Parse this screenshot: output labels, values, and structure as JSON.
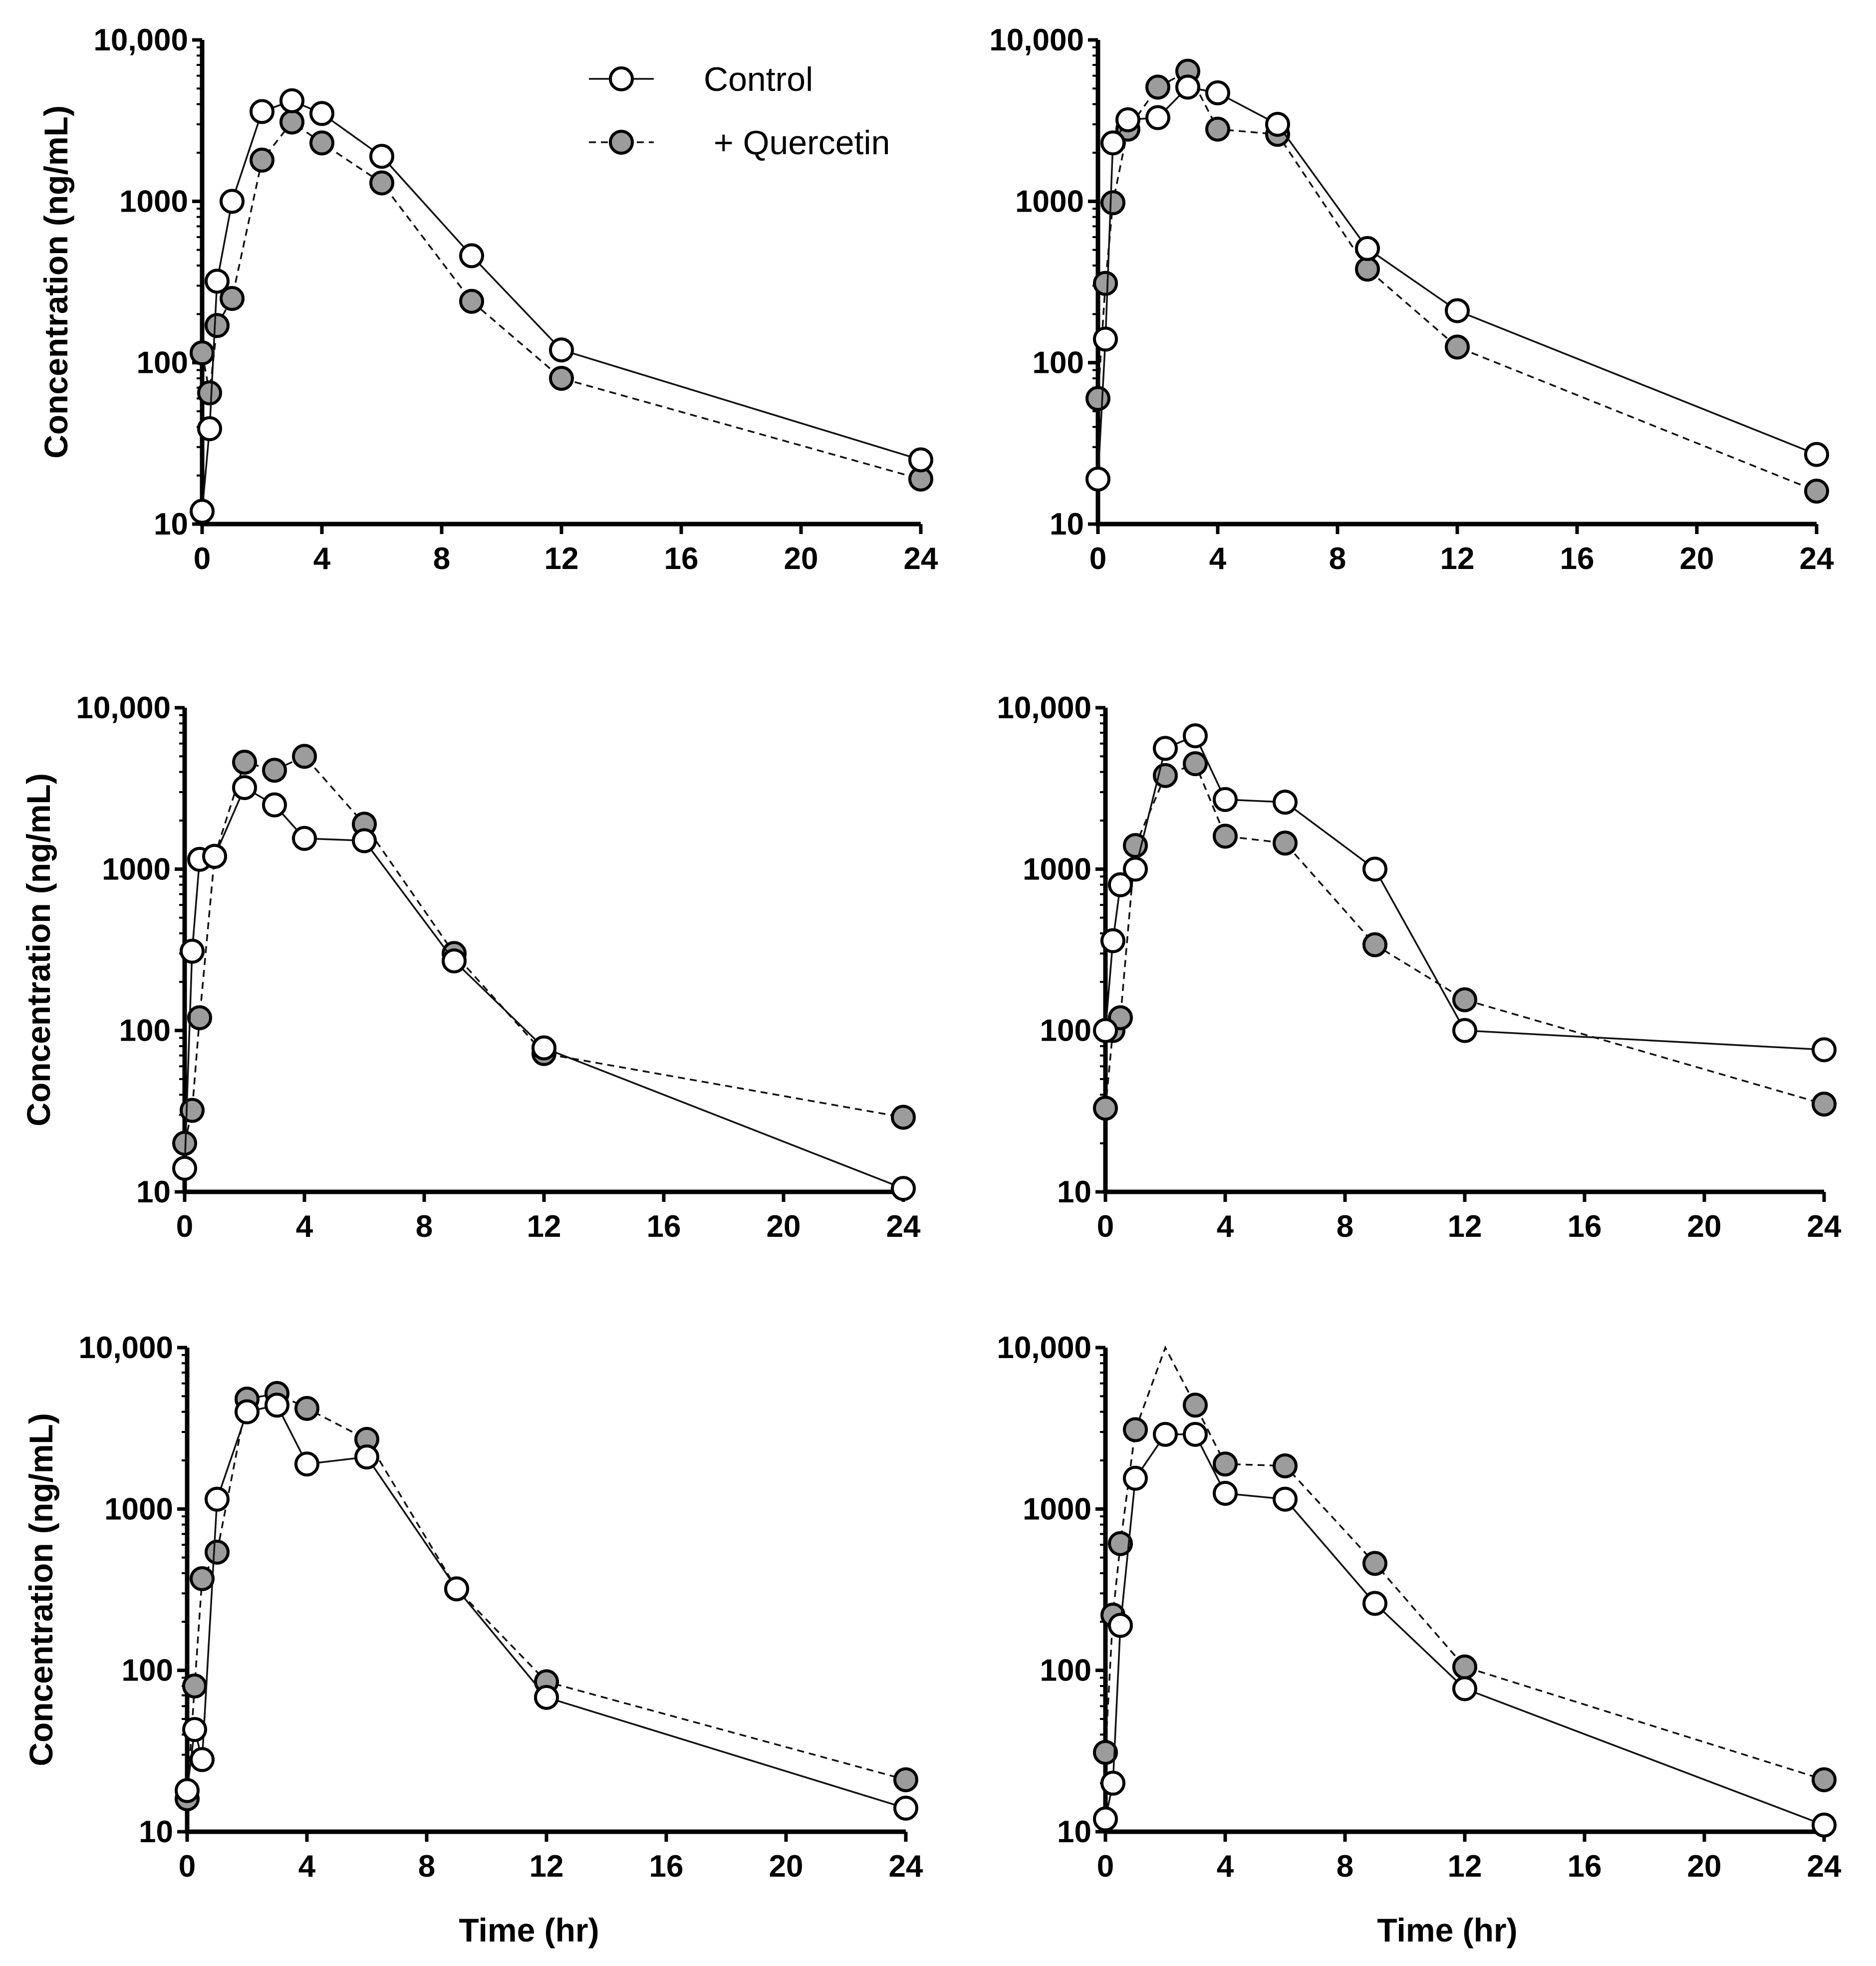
{
  "chart_data": [
    {
      "type": "line",
      "panel": "top-left",
      "yscale": "log",
      "xlim": [
        0,
        24
      ],
      "ylim": [
        10,
        10000
      ],
      "xticks": [
        "0",
        "4",
        "8",
        "12",
        "16",
        "20",
        "24"
      ],
      "yticks": [
        "10",
        "100",
        "1000",
        "10,000"
      ],
      "ylabel": "Concentration (ng/mL)",
      "xlabel": "",
      "legend": {
        "position": "top-center",
        "entries": [
          "Control",
          "+ Quercetin"
        ]
      },
      "series": [
        {
          "name": "Control",
          "x": [
            0,
            0.25,
            0.5,
            1,
            2,
            3,
            4,
            6,
            9,
            12,
            24
          ],
          "values": [
            12,
            39,
            320,
            1000,
            3600,
            4200,
            3500,
            1900,
            460,
            120,
            25
          ]
        },
        {
          "name": "+ Quercetin",
          "x": [
            0,
            0.25,
            0.5,
            1,
            2,
            3,
            4,
            6,
            9,
            12,
            24
          ],
          "values": [
            115,
            65,
            170,
            250,
            1800,
            3100,
            2300,
            1300,
            240,
            80,
            19
          ]
        }
      ]
    },
    {
      "type": "line",
      "panel": "top-right",
      "yscale": "log",
      "xlim": [
        0,
        24
      ],
      "ylim": [
        10,
        10000
      ],
      "xticks": [
        "0",
        "4",
        "8",
        "12",
        "16",
        "20",
        "24"
      ],
      "yticks": [
        "10",
        "100",
        "1000",
        "10,000"
      ],
      "ylabel": "",
      "xlabel": "",
      "series": [
        {
          "name": "Control",
          "x": [
            0,
            0.25,
            0.5,
            1,
            2,
            3,
            4,
            6,
            9,
            12,
            24
          ],
          "values": [
            19,
            140,
            2300,
            3200,
            3300,
            5100,
            4700,
            3000,
            510,
            210,
            27
          ]
        },
        {
          "name": "+ Quercetin",
          "x": [
            0,
            0.25,
            0.5,
            1,
            2,
            3,
            4,
            6,
            9,
            12,
            24
          ],
          "values": [
            60,
            310,
            980,
            2800,
            5100,
            6400,
            2800,
            2600,
            380,
            125,
            16
          ]
        }
      ]
    },
    {
      "type": "line",
      "panel": "middle-left",
      "yscale": "log",
      "xlim": [
        0,
        24
      ],
      "ylim": [
        10,
        10000
      ],
      "xticks": [
        "0",
        "4",
        "8",
        "12",
        "16",
        "20",
        "24"
      ],
      "yticks": [
        "10",
        "100",
        "1000",
        "10,000"
      ],
      "ylabel": "Concentration (ng/mL)",
      "xlabel": "",
      "series": [
        {
          "name": "Control",
          "x": [
            0,
            0.25,
            0.5,
            1,
            2,
            3,
            4,
            6,
            9,
            12,
            24
          ],
          "values": [
            14,
            310,
            1150,
            1200,
            3200,
            2500,
            1550,
            1500,
            270,
            78,
            10.5
          ]
        },
        {
          "name": "+ Quercetin",
          "x": [
            0,
            0.25,
            0.5,
            1,
            2,
            3,
            4,
            6,
            9,
            12,
            24
          ],
          "values": [
            20,
            32,
            120,
            1200,
            4600,
            4100,
            5000,
            1900,
            300,
            72,
            29
          ]
        }
      ]
    },
    {
      "type": "line",
      "panel": "middle-right",
      "yscale": "log",
      "xlim": [
        0,
        24
      ],
      "ylim": [
        10,
        10000
      ],
      "xticks": [
        "0",
        "4",
        "8",
        "12",
        "16",
        "20",
        "24"
      ],
      "yticks": [
        "10",
        "100",
        "1000",
        "10,000"
      ],
      "ylabel": "",
      "xlabel": "",
      "series": [
        {
          "name": "Control",
          "x": [
            0,
            0.25,
            0.5,
            1,
            2,
            3,
            4,
            6,
            9,
            12,
            24
          ],
          "values": [
            100,
            360,
            800,
            1000,
            5600,
            6700,
            2700,
            2600,
            1000,
            100,
            76
          ]
        },
        {
          "name": "+ Quercetin",
          "x": [
            0,
            0.25,
            0.5,
            1,
            2,
            3,
            4,
            6,
            9,
            12,
            24
          ],
          "values": [
            33,
            100,
            120,
            1400,
            3800,
            4500,
            1600,
            1450,
            340,
            155,
            35
          ]
        }
      ]
    },
    {
      "type": "line",
      "panel": "bottom-left",
      "yscale": "log",
      "xlim": [
        0,
        24
      ],
      "ylim": [
        10,
        10000
      ],
      "xticks": [
        "0",
        "4",
        "8",
        "12",
        "16",
        "20",
        "24"
      ],
      "yticks": [
        "10",
        "100",
        "1000",
        "10,000"
      ],
      "ylabel": "Concentration (ng/mL)",
      "xlabel": "Time (hr)",
      "series": [
        {
          "name": "Control",
          "x": [
            0,
            0.25,
            0.5,
            1,
            2,
            3,
            4,
            6,
            9,
            12,
            24
          ],
          "values": [
            18,
            43,
            28,
            1150,
            4000,
            4400,
            1900,
            2100,
            320,
            68,
            14
          ]
        },
        {
          "name": "+ Quercetin",
          "x": [
            0,
            0.25,
            0.5,
            1,
            2,
            3,
            4,
            6,
            9,
            12,
            24
          ],
          "values": [
            16,
            80,
            370,
            540,
            4800,
            5200,
            4200,
            2700,
            320,
            85,
            21
          ]
        }
      ]
    },
    {
      "type": "line",
      "panel": "bottom-right",
      "yscale": "log",
      "xlim": [
        0,
        24
      ],
      "ylim": [
        10,
        10000
      ],
      "xticks": [
        "0",
        "4",
        "8",
        "12",
        "16",
        "20",
        "24"
      ],
      "yticks": [
        "10",
        "100",
        "1000",
        "10,000"
      ],
      "ylabel": "",
      "xlabel": "Time (hr)",
      "series": [
        {
          "name": "Control",
          "x": [
            0,
            0.25,
            0.5,
            1,
            2,
            3,
            4,
            6,
            9,
            12,
            24
          ],
          "values": [
            12,
            20,
            190,
            1550,
            2900,
            2900,
            1250,
            1150,
            260,
            77,
            11
          ]
        },
        {
          "name": "+ Quercetin",
          "x": [
            0,
            0.25,
            0.5,
            1,
            2,
            3,
            4,
            6,
            9,
            12,
            24
          ],
          "values": [
            31,
            220,
            610,
            3100,
            10000,
            4400,
            1900,
            1850,
            460,
            105,
            21
          ],
          "hidden_markers": [
            4
          ]
        }
      ]
    }
  ]
}
